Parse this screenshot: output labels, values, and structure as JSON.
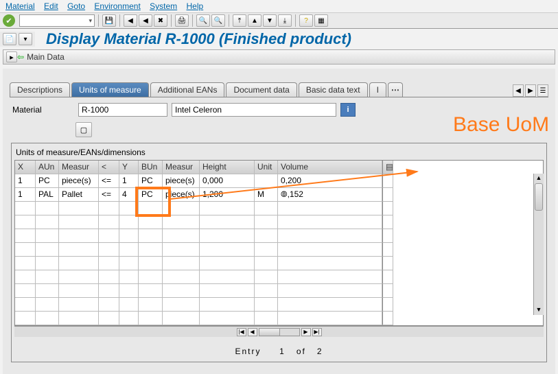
{
  "menu": {
    "items": [
      "Material",
      "Edit",
      "Goto",
      "Environment",
      "System",
      "Help"
    ]
  },
  "title": "Display Material R-1000 (Finished product)",
  "breadcrumb": {
    "main": "Main Data"
  },
  "tabs": {
    "items": [
      {
        "label": "Descriptions",
        "active": false
      },
      {
        "label": "Units of measure",
        "active": true
      },
      {
        "label": "Additional EANs",
        "active": false
      },
      {
        "label": "Document data",
        "active": false
      },
      {
        "label": "Basic data text",
        "active": false
      },
      {
        "label": "I",
        "active": false
      }
    ]
  },
  "form": {
    "material_label": "Material",
    "material_value": "R-1000",
    "description_value": "Intel Celeron"
  },
  "table": {
    "title": "Units of measure/EANs/dimensions",
    "col_widths": [
      "30px",
      "34px",
      "58px",
      "30px",
      "28px",
      "35px",
      "54px",
      "80px",
      "34px",
      "152px",
      "16px"
    ],
    "columns": [
      "X",
      "AUn",
      "Measur",
      "<",
      "Y",
      "BUn",
      "Measur",
      "Height",
      "Unit",
      "Volume",
      ""
    ],
    "rows": [
      [
        "1",
        "PC",
        "piece(s)",
        "<=",
        "1",
        "PC",
        "piece(s)",
        "0,000",
        "",
        "0,200",
        ""
      ],
      [
        "1",
        "PAL",
        "Pallet",
        "<=",
        "4",
        "PC",
        "piece(s)",
        "1,200",
        "M",
        "⦾,152",
        ""
      ]
    ],
    "empty_rows": 9
  },
  "entry": {
    "label": "Entry",
    "current": "1",
    "of": "of",
    "total": "2"
  },
  "annotation": {
    "text": "Base UoM",
    "highlight_color": "#ff7a1a"
  }
}
